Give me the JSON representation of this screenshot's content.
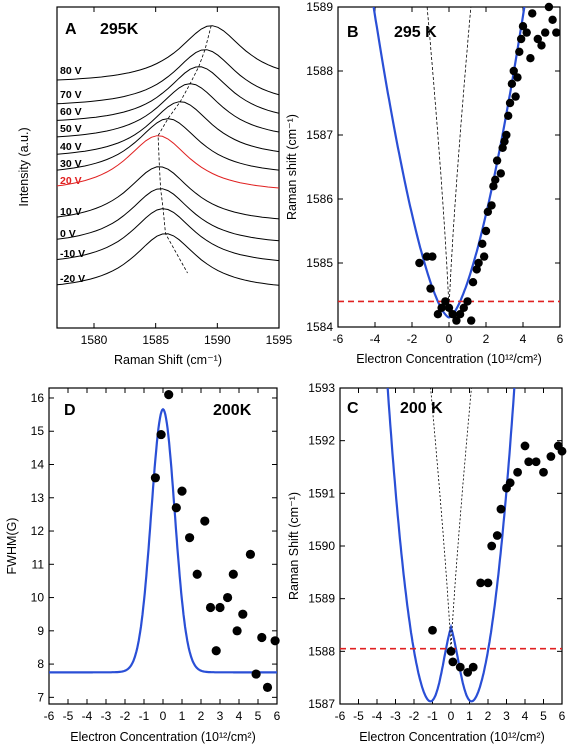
{
  "panels": {
    "A": {
      "letter": "A",
      "temp": "295K",
      "xlabel": "Raman Shift (cm⁻¹)",
      "ylabel": "Intensity (a.u.)",
      "x_ticks": [
        "1580",
        "1585",
        "1590",
        "1595"
      ],
      "voltages": [
        "80 V",
        "70 V",
        "60 V",
        "50 V",
        "40 V",
        "30 V",
        "20 V",
        "10 V",
        "0 V",
        "-10 V",
        "-20 V"
      ],
      "highlight": "20 V",
      "highlight_color": "#e02020"
    },
    "B": {
      "letter": "B",
      "temp": "295 K",
      "xlabel": "Electron Concentration (10¹²/cm²)",
      "ylabel": "Raman shift (cm⁻¹)",
      "x_ticks": [
        "-6",
        "-4",
        "-2",
        "0",
        "2",
        "4",
        "6"
      ],
      "y_ticks": [
        "1584",
        "1585",
        "1586",
        "1587",
        "1588",
        "1589"
      ]
    },
    "C": {
      "letter": "C",
      "temp": "200 K",
      "xlabel": "Electron Concentration (10¹²/cm²)",
      "ylabel": "Raman Shift (cm⁻¹)",
      "x_ticks": [
        "-6",
        "-5",
        "-4",
        "-3",
        "-2",
        "-1",
        "0",
        "1",
        "2",
        "3",
        "4",
        "5",
        "6"
      ],
      "y_ticks": [
        "1587",
        "1588",
        "1589",
        "1590",
        "1591",
        "1592",
        "1593"
      ]
    },
    "D": {
      "letter": "D",
      "temp": "200K",
      "xlabel": "Electron Concentration (10¹²/cm²)",
      "ylabel": "FWHM(G)",
      "x_ticks": [
        "-6",
        "-5",
        "-4",
        "-3",
        "-2",
        "-1",
        "0",
        "1",
        "2",
        "3",
        "4",
        "5",
        "6"
      ],
      "y_ticks": [
        "7",
        "8",
        "9",
        "10",
        "11",
        "12",
        "13",
        "14",
        "15",
        "16"
      ]
    }
  },
  "chart_data": [
    {
      "panel": "A",
      "type": "line",
      "title": "295K",
      "xlabel": "Raman Shift (cm⁻¹)",
      "ylabel": "Intensity (a.u.)",
      "xlim": [
        1577,
        1595
      ],
      "series": [
        {
          "name": "80 V",
          "peak": 1589.5
        },
        {
          "name": "70 V",
          "peak": 1589.0
        },
        {
          "name": "60 V",
          "peak": 1588.5
        },
        {
          "name": "50 V",
          "peak": 1587.8
        },
        {
          "name": "40 V",
          "peak": 1587.0
        },
        {
          "name": "30 V",
          "peak": 1586.0
        },
        {
          "name": "20 V",
          "peak": 1585.2
        },
        {
          "name": "10 V",
          "peak": 1585.3
        },
        {
          "name": "0 V",
          "peak": 1585.4
        },
        {
          "name": "-10 V",
          "peak": 1585.6
        },
        {
          "name": "-20 V",
          "peak": 1585.8
        }
      ],
      "colors": {
        "highlight": "#e02020",
        "trace": "#000000"
      }
    },
    {
      "panel": "B",
      "type": "scatter",
      "title": "295 K",
      "xlabel": "Electron Concentration (10¹²/cm²)",
      "ylabel": "Raman shift (cm⁻¹)",
      "xlim": [
        -6,
        6
      ],
      "ylim": [
        1584,
        1589
      ],
      "points": [
        [
          -1.6,
          1585.0
        ],
        [
          -1.2,
          1585.1
        ],
        [
          -0.9,
          1585.1
        ],
        [
          -1.0,
          1584.6
        ],
        [
          -0.6,
          1584.2
        ],
        [
          -0.4,
          1584.3
        ],
        [
          -0.2,
          1584.4
        ],
        [
          0.0,
          1584.3
        ],
        [
          0.2,
          1584.2
        ],
        [
          0.4,
          1584.1
        ],
        [
          0.6,
          1584.2
        ],
        [
          0.8,
          1584.3
        ],
        [
          1.0,
          1584.4
        ],
        [
          1.2,
          1584.1
        ],
        [
          1.3,
          1584.7
        ],
        [
          1.5,
          1584.9
        ],
        [
          1.6,
          1585.0
        ],
        [
          1.8,
          1585.3
        ],
        [
          1.9,
          1585.1
        ],
        [
          2.0,
          1585.5
        ],
        [
          2.1,
          1585.8
        ],
        [
          2.3,
          1585.9
        ],
        [
          2.4,
          1586.2
        ],
        [
          2.5,
          1586.3
        ],
        [
          2.6,
          1586.6
        ],
        [
          2.8,
          1586.4
        ],
        [
          2.9,
          1586.8
        ],
        [
          3.0,
          1586.9
        ],
        [
          3.1,
          1587.0
        ],
        [
          3.2,
          1587.3
        ],
        [
          3.3,
          1587.5
        ],
        [
          3.4,
          1587.8
        ],
        [
          3.5,
          1588.0
        ],
        [
          3.6,
          1587.6
        ],
        [
          3.7,
          1587.9
        ],
        [
          3.8,
          1588.3
        ],
        [
          3.9,
          1588.5
        ],
        [
          4.0,
          1588.7
        ],
        [
          4.2,
          1588.6
        ],
        [
          4.4,
          1588.2
        ],
        [
          4.5,
          1588.9
        ],
        [
          4.8,
          1588.5
        ],
        [
          5.0,
          1588.4
        ],
        [
          5.2,
          1588.6
        ],
        [
          5.4,
          1589.0
        ],
        [
          5.6,
          1588.8
        ],
        [
          5.8,
          1588.6
        ]
      ],
      "ref_line_y": 1584.4,
      "colors": {
        "theory": "#2a4fd6",
        "ref": "#e02020",
        "points": "#000000"
      }
    },
    {
      "panel": "C",
      "type": "scatter",
      "title": "200 K",
      "xlabel": "Electron Concentration (10¹²/cm²)",
      "ylabel": "Raman Shift (cm⁻¹)",
      "xlim": [
        -6,
        6
      ],
      "ylim": [
        1587,
        1593
      ],
      "points": [
        [
          -1.0,
          1588.4
        ],
        [
          0.0,
          1588.0
        ],
        [
          0.1,
          1587.8
        ],
        [
          0.5,
          1587.7
        ],
        [
          0.9,
          1587.6
        ],
        [
          1.2,
          1587.7
        ],
        [
          1.6,
          1589.3
        ],
        [
          2.0,
          1589.3
        ],
        [
          2.2,
          1590.0
        ],
        [
          2.5,
          1590.2
        ],
        [
          2.7,
          1590.7
        ],
        [
          3.0,
          1591.1
        ],
        [
          3.2,
          1591.2
        ],
        [
          3.6,
          1591.4
        ],
        [
          4.0,
          1591.9
        ],
        [
          4.2,
          1591.6
        ],
        [
          4.6,
          1591.6
        ],
        [
          5.0,
          1591.4
        ],
        [
          5.4,
          1591.7
        ],
        [
          5.8,
          1591.9
        ],
        [
          6.0,
          1591.8
        ]
      ],
      "ref_line_y": 1588.05,
      "colors": {
        "theory": "#2a4fd6",
        "ref": "#e02020",
        "points": "#000000"
      }
    },
    {
      "panel": "D",
      "type": "scatter",
      "title": "200K",
      "xlabel": "Electron Concentration (10¹²/cm²)",
      "ylabel": "FWHM(G)",
      "xlim": [
        -6,
        6
      ],
      "ylim": [
        6.8,
        16.3
      ],
      "points": [
        [
          -0.4,
          13.6
        ],
        [
          -0.1,
          14.9
        ],
        [
          0.3,
          16.1
        ],
        [
          0.7,
          12.7
        ],
        [
          1.0,
          13.2
        ],
        [
          1.4,
          11.8
        ],
        [
          1.8,
          10.7
        ],
        [
          2.2,
          12.3
        ],
        [
          2.5,
          9.7
        ],
        [
          2.8,
          8.4
        ],
        [
          3.0,
          9.7
        ],
        [
          3.4,
          10.0
        ],
        [
          3.7,
          10.7
        ],
        [
          3.9,
          9.0
        ],
        [
          4.2,
          9.5
        ],
        [
          4.6,
          11.3
        ],
        [
          4.9,
          7.7
        ],
        [
          5.2,
          8.8
        ],
        [
          5.5,
          7.3
        ],
        [
          5.9,
          8.7
        ]
      ],
      "colors": {
        "theory": "#2a4fd6",
        "points": "#000000"
      }
    }
  ]
}
